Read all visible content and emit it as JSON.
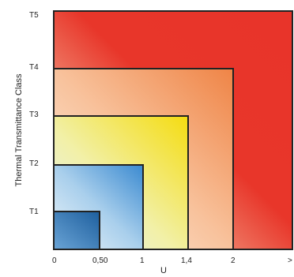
{
  "diagram": {
    "y_axis_label": "Thermal Transmittance Class",
    "x_axis_label": "U",
    "y_ticks": [
      "T1",
      "T2",
      "T3",
      "T4",
      "T5"
    ],
    "x_ticks": [
      "0",
      "0,50",
      "1",
      "1,4",
      "2",
      ">"
    ],
    "classes": [
      {
        "name": "T5",
        "u_max": ">",
        "color_from": "#f4c8b4",
        "color_to": "#e8362a"
      },
      {
        "name": "T4",
        "u_max": "2",
        "color_from": "#fbe2c8",
        "color_to": "#f08a4c"
      },
      {
        "name": "T3",
        "u_max": "1,4",
        "color_from": "#e2f0f4",
        "color_to": "#f2de1c"
      },
      {
        "name": "T2",
        "u_max": "1",
        "color_from": "#e6f2f8",
        "color_to": "#3f8fd0"
      },
      {
        "name": "T1",
        "u_max": "0,50",
        "color_from": "#6ba6d6",
        "color_to": "#1f62a2"
      }
    ]
  }
}
